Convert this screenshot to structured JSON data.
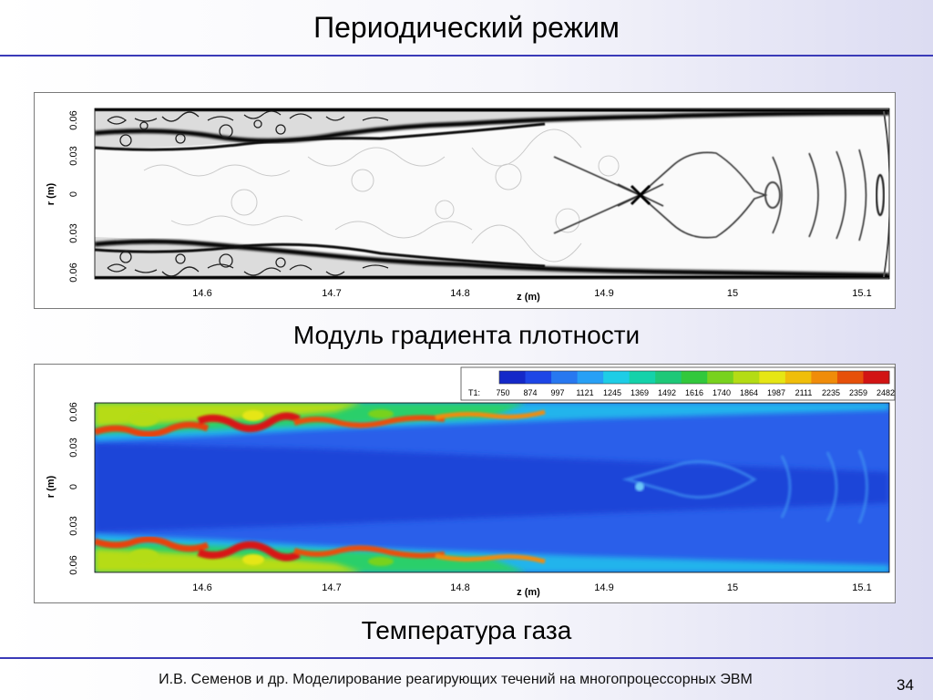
{
  "slide": {
    "title": "Периодический режим",
    "footer": "И.В. Семенов и др. Моделирование реагирующих течений на многопроцессорных ЭВМ",
    "page_number": "34"
  },
  "density_plot": {
    "caption": "Модуль градиента плотности",
    "x_label": "z (m)",
    "y_label": "r (m)",
    "x_ticks": [
      "14.6",
      "14.7",
      "14.8",
      "14.9",
      "15",
      "15.1"
    ],
    "y_ticks": [
      "0.06",
      "0.03",
      "0",
      "0.03",
      "0.06"
    ]
  },
  "temperature_plot": {
    "caption": "Температура газа",
    "x_label": "z (m)",
    "y_label": "r (m)",
    "x_ticks": [
      "14.6",
      "14.7",
      "14.8",
      "14.9",
      "15",
      "15.1"
    ],
    "y_ticks": [
      "0.06",
      "0.03",
      "0",
      "0.03",
      "0.06"
    ],
    "legend": {
      "variable": "T1:",
      "levels": [
        "750",
        "874",
        "997",
        "1121",
        "1245",
        "1369",
        "1492",
        "1616",
        "1740",
        "1864",
        "1987",
        "2111",
        "2235",
        "2359",
        "2482"
      ],
      "colors": [
        "#1428c8",
        "#1e46e6",
        "#2878f0",
        "#28a0f5",
        "#1ecde6",
        "#14d2aa",
        "#1ec878",
        "#32c83c",
        "#78d21e",
        "#b4dc14",
        "#e6e614",
        "#f0be0a",
        "#f08c0a",
        "#e6500a",
        "#d21414"
      ]
    }
  }
}
